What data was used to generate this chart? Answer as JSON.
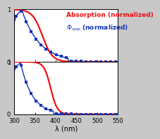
{
  "xlim": [
    300,
    550
  ],
  "ylim": [
    0,
    1
  ],
  "xlabel": "λ (nm)",
  "xticks": [
    300,
    350,
    400,
    450,
    500,
    550
  ],
  "yticks": [
    0,
    1
  ],
  "legend_absorption": "Absorption (normalized)",
  "legend_phi": "Φ$_{app}$ (normalized)",
  "absorption_color": "#ee1111",
  "phi_color": "#1133bb",
  "background_color": "#c8c8c8",
  "panel_bg": "#ffffff",
  "title_fontsize": 6.5,
  "label_fontsize": 7,
  "tick_fontsize": 6.0
}
